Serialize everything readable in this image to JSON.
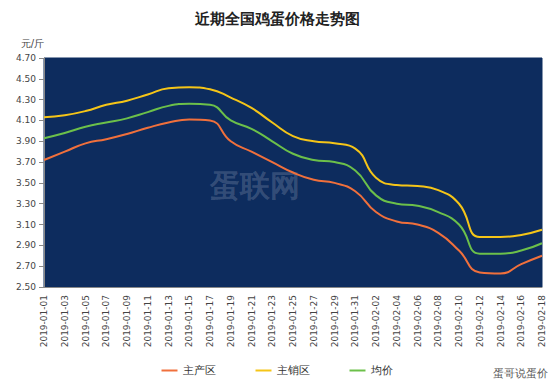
{
  "chart_data": {
    "type": "line",
    "title": "近期全国鸡蛋价格走势图",
    "y_label": "元/斤",
    "annotations": [
      "蛋联网",
      "蛋哥说蛋价"
    ],
    "categories": [
      "2019-01-01",
      "2019-01-03",
      "2019-01-05",
      "2019-01-07",
      "2019-01-09",
      "2019-01-11",
      "2019-01-13",
      "2019-01-15",
      "2019-01-17",
      "2019-01-19",
      "2019-01-21",
      "2019-01-23",
      "2019-01-25",
      "2019-01-27",
      "2019-01-29",
      "2019-01-31",
      "2019-02-02",
      "2019-02-04",
      "2019-02-06",
      "2019-02-08",
      "2019-02-10",
      "2019-02-12",
      "2019-02-14",
      "2019-02-16",
      "2019-02-18"
    ],
    "series": [
      {
        "name": "主产区",
        "color": "#f0703c",
        "values": [
          3.72,
          3.8,
          3.88,
          3.92,
          3.97,
          4.03,
          4.08,
          4.11,
          4.1,
          3.9,
          3.8,
          3.7,
          3.6,
          3.53,
          3.5,
          3.42,
          3.22,
          3.13,
          3.1,
          3.02,
          2.85,
          2.64,
          2.63,
          2.72,
          2.8
        ]
      },
      {
        "name": "主销区",
        "color": "#f5c518",
        "values": [
          4.13,
          4.15,
          4.19,
          4.25,
          4.29,
          4.35,
          4.41,
          4.42,
          4.4,
          4.32,
          4.22,
          4.08,
          3.95,
          3.9,
          3.88,
          3.83,
          3.55,
          3.48,
          3.47,
          3.43,
          3.3,
          2.98,
          2.98,
          3.0,
          3.05
        ]
      },
      {
        "name": "均价",
        "color": "#6cc04a",
        "values": [
          3.93,
          3.98,
          4.04,
          4.08,
          4.12,
          4.18,
          4.24,
          4.26,
          4.25,
          4.1,
          4.02,
          3.9,
          3.78,
          3.72,
          3.7,
          3.62,
          3.38,
          3.3,
          3.28,
          3.22,
          3.1,
          2.82,
          2.82,
          2.85,
          2.92
        ]
      }
    ],
    "ylim": [
      2.5,
      4.7
    ],
    "yticks": [
      {
        "value": 2.5,
        "label": "2.50"
      },
      {
        "value": 2.7,
        "label": "2.70"
      },
      {
        "value": 2.9,
        "label": "2.90"
      },
      {
        "value": 3.1,
        "label": "3.10"
      },
      {
        "value": 3.3,
        "label": "3.30"
      },
      {
        "value": 3.5,
        "label": "3.50"
      },
      {
        "value": 3.7,
        "label": "3.70"
      },
      {
        "value": 3.9,
        "label": "3.90"
      },
      {
        "value": 4.1,
        "label": "4.10"
      },
      {
        "value": 4.3,
        "label": "4.30"
      },
      {
        "value": 4.5,
        "label": "4.50"
      },
      {
        "value": 4.7,
        "label": "4.70"
      }
    ],
    "grid": false,
    "legend": "bottom"
  }
}
